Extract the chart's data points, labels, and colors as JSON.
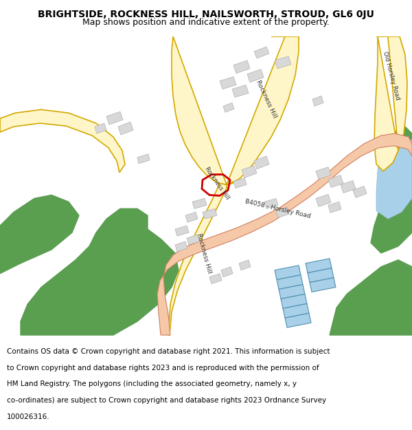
{
  "title": "BRIGHTSIDE, ROCKNESS HILL, NAILSWORTH, STROUD, GL6 0JU",
  "subtitle": "Map shows position and indicative extent of the property.",
  "footer_lines": [
    "Contains OS data © Crown copyright and database right 2021. This information is subject",
    "to Crown copyright and database rights 2023 and is reproduced with the permission of",
    "HM Land Registry. The polygons (including the associated geometry, namely x, y",
    "co-ordinates) are subject to Crown copyright and database rights 2023 Ordnance Survey",
    "100026316."
  ],
  "map_bg": "#ffffff",
  "road_yellow_fill": "#fef5c8",
  "road_yellow_border": "#d4a800",
  "road_salmon_fill": "#f5c8a8",
  "road_salmon_border": "#d08060",
  "green_fill": "#5a9e50",
  "blue_fill": "#a8d0e8",
  "building_fill": "#d8d8d8",
  "building_border": "#b0b0b0",
  "highlight_color": "#cc0000",
  "title_fontsize": 10,
  "subtitle_fontsize": 9,
  "footer_fontsize": 7.5
}
